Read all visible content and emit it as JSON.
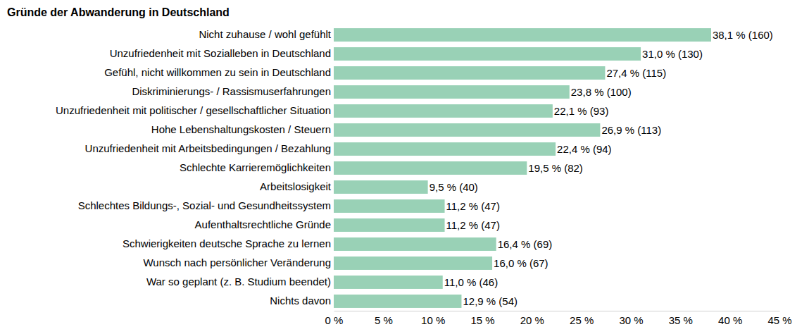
{
  "chart_data": {
    "type": "bar",
    "orientation": "horizontal",
    "title": "Gründe der Abwanderung in Deutschland",
    "categories": [
      "Nicht zuhause / wohl gefühlt",
      "Unzufriedenheit mit Sozialleben in Deutschland",
      "Gefühl, nicht willkommen zu sein in Deutschland",
      "Diskriminierungs- / Rassismuserfahrungen",
      "Unzufriedenheit mit politischer / gesellschaftlicher Situation",
      "Hohe Lebenshaltungskosten / Steuern",
      "Unzufriedenheit mit Arbeitsbedingungen / Bezahlung",
      "Schlechte Karrieremöglichkeiten",
      "Arbeitslosigkeit",
      "Schlechtes Bildungs-, Sozial- und Gesundheitssystem",
      "Aufenthaltsrechtliche Gründe",
      "Schwierigkeiten deutsche Sprache zu lernen",
      "Wunsch nach persönlicher Veränderung",
      "War so geplant (z. B. Studium beendet)",
      "Nichts davon"
    ],
    "values": [
      38.1,
      31.0,
      27.4,
      23.8,
      22.1,
      26.9,
      22.4,
      19.5,
      9.5,
      11.2,
      11.2,
      16.4,
      16.0,
      11.0,
      12.9
    ],
    "value_labels": [
      "38,1 % (160)",
      "31,0 % (130)",
      "27,4 % (115)",
      "23,8 % (100)",
      "22,1 % (93)",
      "26,9 % (113)",
      "22,4 % (94)",
      "19,5 % (82)",
      "9,5 % (40)",
      "11,2 % (47)",
      "11,2 % (47)",
      "16,4 % (69)",
      "16,0 % (67)",
      "11,0 % (46)",
      "12,9 % (54)"
    ],
    "data_labels": true,
    "color": "#99d1b6",
    "xlim": [
      0,
      45
    ],
    "xticks": [
      {
        "value": 0,
        "label": "0 %"
      },
      {
        "value": 5,
        "label": "5 %"
      },
      {
        "value": 10,
        "label": "10 %"
      },
      {
        "value": 15,
        "label": "15 %"
      },
      {
        "value": 20,
        "label": "20 %"
      },
      {
        "value": 25,
        "label": "25 %"
      },
      {
        "value": 30,
        "label": "30 %"
      },
      {
        "value": 35,
        "label": "35 %"
      },
      {
        "value": 40,
        "label": "40 %"
      },
      {
        "value": 45,
        "label": "45 %"
      }
    ],
    "grid": false
  }
}
